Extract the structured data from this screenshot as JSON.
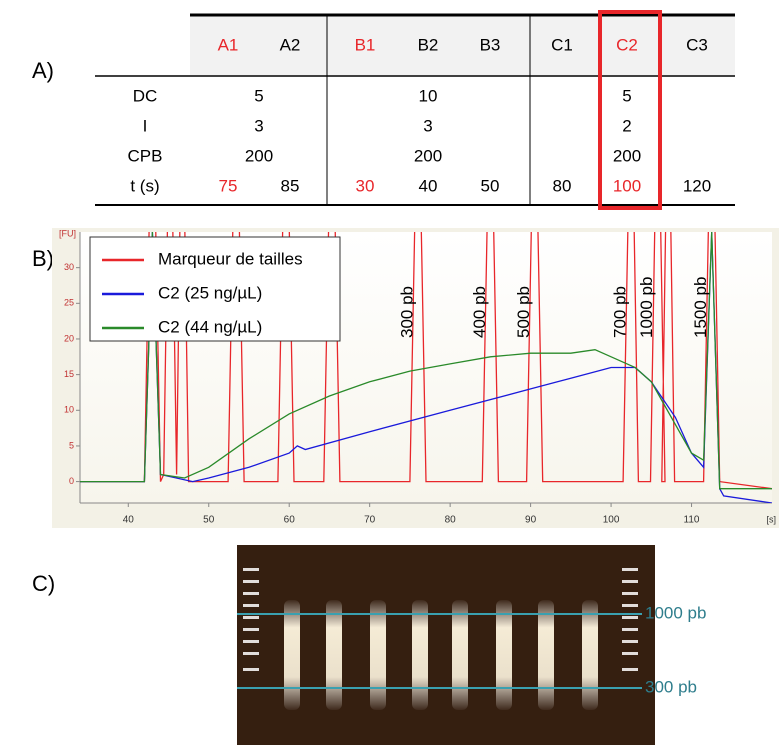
{
  "panels": {
    "a": "A)",
    "b": "B)",
    "c": "C)"
  },
  "table": {
    "highlight_color": "#e8262a",
    "columns": [
      {
        "label": "A1",
        "highlight": true
      },
      {
        "label": "A2",
        "highlight": false
      },
      {
        "label": "B1",
        "highlight": true
      },
      {
        "label": "B2",
        "highlight": false
      },
      {
        "label": "B3",
        "highlight": false
      },
      {
        "label": "C1",
        "highlight": false
      },
      {
        "label": "C2",
        "highlight": true
      },
      {
        "label": "C3",
        "highlight": false
      }
    ],
    "rows": [
      {
        "label": "DC",
        "values": [
          "5",
          "10",
          "5"
        ]
      },
      {
        "label": "I",
        "values": [
          "3",
          "3",
          "2"
        ]
      },
      {
        "label": "CPB",
        "values": [
          "200",
          "200",
          "200"
        ]
      },
      {
        "label": "t (s)",
        "values": [
          "75",
          "85",
          "30",
          "40",
          "50",
          "80",
          "100",
          "120"
        ]
      }
    ]
  },
  "chart_data": {
    "type": "line",
    "x_label": "[s]",
    "y_label": "[FU]",
    "xlim": [
      34,
      120
    ],
    "xticks": [
      40,
      50,
      60,
      70,
      80,
      90,
      100,
      110
    ],
    "ylim": [
      -3,
      35
    ],
    "yticks": [
      0,
      5,
      10,
      15,
      20,
      25,
      30
    ],
    "legend": "top-left",
    "series": [
      {
        "name": "Marqueur de tailles",
        "color": "#e8262a",
        "x": [
          34,
          42,
          43,
          44,
          44.4,
          45.2,
          46,
          46.7,
          47.5,
          52.4,
          53.4,
          54.4,
          58.6,
          59.6,
          60.6,
          64.3,
          65.3,
          66.3,
          75,
          76,
          77,
          84,
          85,
          86,
          89.5,
          90.5,
          91.5,
          101.5,
          102.5,
          103.4,
          104.9,
          105.8,
          106.7,
          106.3,
          107.1,
          107.9,
          111.5,
          112.5,
          113.5,
          120
        ],
        "values": [
          0,
          0,
          60,
          0,
          1,
          60,
          1,
          60,
          0,
          0,
          60,
          0,
          0,
          60,
          0,
          0,
          60,
          0,
          0,
          60,
          0,
          0,
          60,
          0,
          0,
          60,
          0,
          0,
          60,
          0,
          0,
          60,
          0,
          0,
          60,
          0,
          0,
          60,
          0,
          -1
        ]
      },
      {
        "name": "C2 (25 ng/µL)",
        "color": "#1a1adb",
        "x": [
          34,
          42,
          43,
          44,
          48,
          50,
          55,
          60,
          61,
          62,
          70,
          80,
          90,
          95,
          100,
          103,
          105,
          108,
          110,
          111.5,
          112.5,
          113.5,
          114,
          120
        ],
        "values": [
          0,
          0,
          35,
          1,
          0,
          0.5,
          2,
          4,
          5,
          4.5,
          7,
          10,
          13,
          14.5,
          16,
          16,
          14,
          9,
          4,
          2,
          35,
          -1,
          -2,
          -3
        ]
      },
      {
        "name": "C2 (44 ng/µL)",
        "color": "#2a8a2a",
        "x": [
          34,
          42,
          43,
          44,
          47,
          50,
          55,
          60,
          65,
          70,
          75,
          80,
          85,
          90,
          95,
          98,
          100,
          103,
          105,
          108,
          110,
          111.5,
          112.5,
          113.5,
          120
        ],
        "values": [
          0,
          0,
          35,
          1,
          0.5,
          2,
          6,
          9.5,
          12,
          14,
          15.5,
          16.5,
          17.5,
          18,
          18,
          18.5,
          17.5,
          16,
          14,
          8,
          4,
          3,
          35,
          -1,
          -1
        ]
      }
    ],
    "annotations": [
      {
        "text": "300 pb",
        "x": 76
      },
      {
        "text": "400 pb",
        "x": 85
      },
      {
        "text": "500 pb",
        "x": 90.5
      },
      {
        "text": "700 pb",
        "x": 102.5
      },
      {
        "text": "1000 pb",
        "x": 105.8
      },
      {
        "text": "1500 pb",
        "x": 112.5
      }
    ]
  },
  "gel": {
    "markers": [
      "1000 pb",
      "300 pb"
    ]
  }
}
